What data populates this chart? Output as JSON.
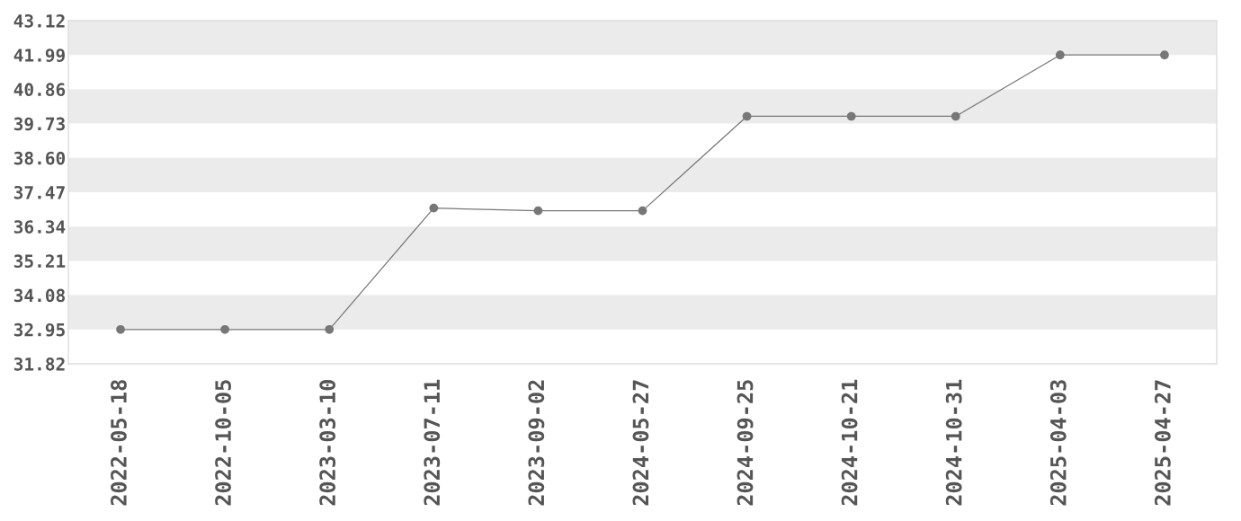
{
  "chart_data": {
    "type": "line",
    "categories": [
      "2022-05-18",
      "2022-10-05",
      "2023-03-10",
      "2023-07-11",
      "2023-09-02",
      "2024-05-27",
      "2024-09-25",
      "2024-10-21",
      "2024-10-31",
      "2025-04-03",
      "2025-04-27"
    ],
    "series": [
      {
        "color": "#777777",
        "values": [
          32.95,
          32.95,
          32.95,
          36.95,
          36.86,
          36.86,
          39.97,
          39.97,
          39.97,
          41.99,
          41.99
        ]
      }
    ],
    "ylim": [
      31.82,
      43.12
    ],
    "yticks": [
      31.82,
      32.95,
      34.08,
      35.21,
      36.34,
      37.47,
      {
        "value": 38.6,
        "label": "38.60"
      },
      39.73,
      40.86,
      41.99,
      43.12
    ],
    "bands": [
      {
        "axis": "y",
        "from": 41.99,
        "to": 43.12,
        "color": "#ebebeb"
      },
      {
        "axis": "y",
        "from": 39.73,
        "to": 40.86,
        "color": "#ebebeb"
      },
      {
        "axis": "y",
        "from": 37.47,
        "to": 38.6,
        "color": "#ebebeb"
      },
      {
        "axis": "y",
        "from": 35.21,
        "to": 36.34,
        "color": "#ebebeb"
      },
      {
        "axis": "y",
        "from": 32.95,
        "to": 34.08,
        "color": "#ebebeb"
      }
    ],
    "marker": "circle",
    "line_style": "solid"
  }
}
